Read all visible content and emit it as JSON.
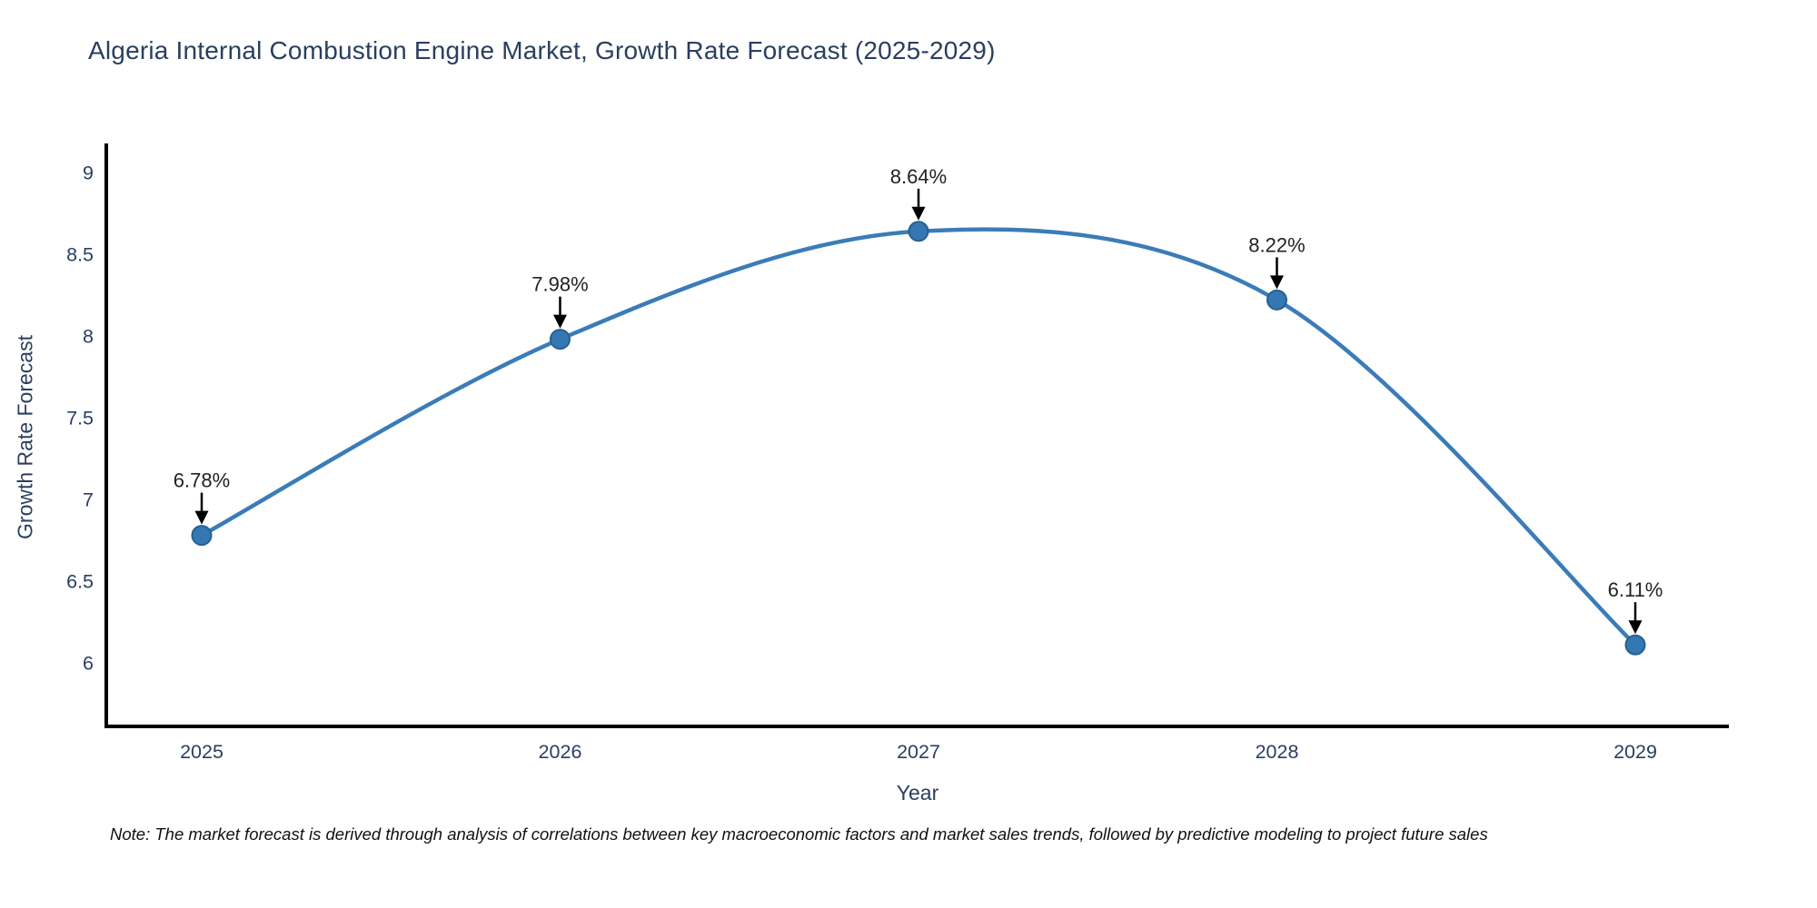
{
  "title": "Algeria Internal Combustion Engine Market, Growth Rate Forecast (2025-2029)",
  "footnote": "Note: The market forecast is derived through analysis of correlations between key macroeconomic factors and market sales trends, followed by predictive modeling to project future sales",
  "chart_data": {
    "type": "line",
    "title": "Algeria Internal Combustion Engine Market, Growth Rate Forecast (2025-2029)",
    "xlabel": "Year",
    "ylabel": "Growth Rate Forecast",
    "categories": [
      "2025",
      "2026",
      "2027",
      "2028",
      "2029"
    ],
    "values": [
      6.78,
      7.98,
      8.64,
      8.22,
      6.11
    ],
    "point_labels": [
      "6.78%",
      "7.98%",
      "8.64%",
      "8.22%",
      "6.11%"
    ],
    "yticks": [
      "6",
      "6.5",
      "7",
      "7.5",
      "8",
      "8.5",
      "9"
    ],
    "ylim": [
      5.6,
      9.18
    ],
    "line_shape": "spline",
    "grid": false,
    "legend": "none",
    "annotation_style": "value labels above points with downward black arrows",
    "colors": {
      "line": "#3b7cb8",
      "marker_fill": "#3577b2",
      "marker_stroke": "#27608f",
      "axis": "#000000",
      "tick_text": "#2a3f5f",
      "annotation_text": "#222222",
      "arrow": "#000000"
    }
  }
}
